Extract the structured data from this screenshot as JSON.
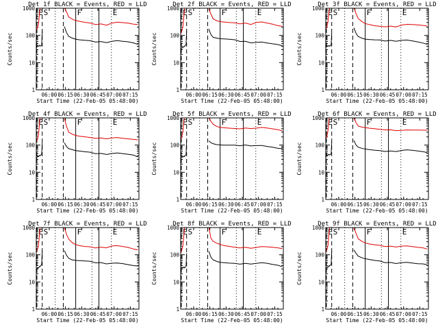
{
  "figure": {
    "title_template": "BLACK = Events, RED = LLD",
    "ylabel": "Counts/sec",
    "xlabel": "Start Time (22-Feb-05 05:48:00)"
  },
  "panels": [
    {
      "title": "Det 1f BLACK = Events, RED = LLD"
    },
    {
      "title": "Det 2f BLACK = Events, RED = LLD"
    },
    {
      "title": "Det 3f BLACK = Events, RED = LLD"
    },
    {
      "title": "Det 4f BLACK = Events, RED = LLD"
    },
    {
      "title": "Det 5f BLACK = Events, RED = LLD"
    },
    {
      "title": "Det 6f BLACK = Events, RED = LLD"
    },
    {
      "title": "Det 7f BLACK = Events, RED = LLD"
    },
    {
      "title": "Det 8f BLACK = Events, RED = LLD"
    },
    {
      "title": "Det 9f BLACK = Events, RED = LLD"
    }
  ],
  "chart_data": {
    "type": "line",
    "layout": "3x3 grid",
    "title": "BLACK = Events, RED = LLD",
    "xlabel": "Start Time (22-Feb-05 05:48:00)",
    "ylabel": "Counts/sec",
    "y_scale": "log",
    "ylim": [
      1,
      1000
    ],
    "y_ticks": [
      1,
      10,
      100,
      1000
    ],
    "y_tick_labels": [
      "1",
      "10",
      "100",
      "1000"
    ],
    "xlim_minutes_from_start": [
      0,
      95
    ],
    "x_ticks_minutes": [
      12,
      27,
      42,
      57,
      72,
      87
    ],
    "x_tick_labels": [
      "06:00",
      "06:15",
      "06:30",
      "06:45",
      "07:00",
      "07:15"
    ],
    "grid": false,
    "marker_lines": [
      {
        "label": "E",
        "minute": 0.6,
        "style": "dashed"
      },
      {
        "label": "S",
        "minute": 5.5,
        "style": "dashed"
      },
      {
        "label": "",
        "minute": 17.5,
        "style": "dotted"
      },
      {
        "label": "",
        "minute": 25.0,
        "style": "dashed"
      },
      {
        "label": "F",
        "minute": 36.5,
        "style": "solid"
      },
      {
        "label": "",
        "minute": 51.5,
        "style": "dotted"
      },
      {
        "label": "",
        "minute": 58.0,
        "style": "solid"
      },
      {
        "label": "E",
        "minute": 69.5,
        "style": "dotted"
      }
    ],
    "series_colors": {
      "LLD": "#e00000",
      "Events": "#000000"
    },
    "x_minutes": [
      0,
      1,
      2,
      3,
      3.5,
      4,
      5,
      5.5,
      6,
      8,
      12,
      16,
      20,
      24,
      25,
      25.5,
      26,
      28,
      30,
      33,
      36,
      40,
      45,
      50,
      55,
      60,
      65,
      70,
      75,
      80,
      85,
      90,
      94
    ],
    "panels": [
      {
        "name": "Det 1f",
        "series": [
          {
            "name": "LLD",
            "values": [
              150,
              180,
              250,
              600,
              1000,
              null,
              null,
              null,
              null,
              null,
              null,
              null,
              null,
              null,
              null,
              null,
              1000,
              700,
              450,
              380,
              340,
              320,
              300,
              290,
              260,
              280,
              250,
              300,
              320,
              300,
              280,
              250,
              240
            ]
          },
          {
            "name": "Events",
            "values": [
              30,
              40,
              38,
              42,
              40,
              42,
              45,
              150,
              null,
              null,
              null,
              null,
              null,
              null,
              null,
              null,
              200,
              120,
              90,
              80,
              75,
              72,
              70,
              68,
              60,
              62,
              55,
              60,
              62,
              58,
              55,
              50,
              45
            ]
          }
        ]
      },
      {
        "name": "Det 2f",
        "series": [
          {
            "name": "LLD",
            "values": [
              120,
              150,
              220,
              550,
              1000,
              null,
              null,
              null,
              null,
              null,
              null,
              null,
              null,
              null,
              null,
              null,
              1000,
              650,
              430,
              370,
              330,
              310,
              290,
              280,
              250,
              270,
              240,
              290,
              310,
              290,
              270,
              240,
              230
            ]
          },
          {
            "name": "Events",
            "values": [
              28,
              38,
              36,
              40,
              38,
              40,
              44,
              140,
              null,
              null,
              null,
              null,
              null,
              null,
              null,
              null,
              180,
              110,
              85,
              78,
              72,
              70,
              68,
              66,
              58,
              60,
              54,
              58,
              60,
              56,
              52,
              48,
              42
            ]
          }
        ]
      },
      {
        "name": "Det 3f",
        "series": [
          {
            "name": "LLD",
            "values": [
              160,
              200,
              300,
              700,
              1000,
              null,
              null,
              null,
              null,
              null,
              null,
              null,
              null,
              null,
              null,
              null,
              1000,
              600,
              400,
              330,
              280,
              260,
              240,
              230,
              220,
              230,
              210,
              240,
              250,
              240,
              230,
              220,
              210
            ]
          },
          {
            "name": "Events",
            "values": [
              32,
              42,
              40,
              44,
              42,
              44,
              48,
              130,
              null,
              null,
              null,
              null,
              null,
              null,
              null,
              null,
              190,
              120,
              95,
              85,
              78,
              75,
              72,
              70,
              62,
              64,
              58,
              62,
              64,
              60,
              56,
              52,
              48
            ]
          }
        ]
      },
      {
        "name": "Det 4f",
        "series": [
          {
            "name": "LLD",
            "values": [
              140,
              170,
              240,
              600,
              1000,
              null,
              null,
              null,
              null,
              null,
              null,
              null,
              null,
              null,
              null,
              null,
              1000,
              500,
              300,
              250,
              220,
              200,
              190,
              180,
              170,
              180,
              170,
              190,
              200,
              190,
              180,
              170,
              160
            ]
          },
          {
            "name": "Events",
            "values": [
              30,
              38,
              36,
              40,
              38,
              40,
              44,
              120,
              null,
              null,
              null,
              null,
              null,
              null,
              null,
              null,
              120,
              85,
              70,
              65,
              60,
              58,
              56,
              55,
              50,
              52,
              48,
              52,
              54,
              50,
              46,
              42,
              35
            ]
          }
        ]
      },
      {
        "name": "Det 5f",
        "series": [
          {
            "name": "LLD",
            "values": [
              150,
              200,
              300,
              800,
              1000,
              null,
              null,
              null,
              null,
              null,
              null,
              null,
              null,
              null,
              null,
              null,
              1000,
              750,
              600,
              520,
              480,
              460,
              440,
              420,
              400,
              420,
              390,
              400,
              420,
              400,
              380,
              360,
              340
            ]
          },
          {
            "name": "Events",
            "values": [
              30,
              40,
              38,
              42,
              40,
              42,
              45,
              150,
              null,
              null,
              null,
              null,
              null,
              null,
              null,
              null,
              150,
              130,
              120,
              110,
              105,
              100,
              98,
              96,
              90,
              95,
              88,
              92,
              95,
              90,
              86,
              80,
              78
            ]
          }
        ]
      },
      {
        "name": "Det 6f",
        "series": [
          {
            "name": "LLD",
            "values": [
              170,
              210,
              320,
              750,
              1000,
              null,
              null,
              null,
              null,
              null,
              null,
              null,
              null,
              null,
              null,
              null,
              1000,
              650,
              480,
              440,
              420,
              400,
              390,
              380,
              370,
              380,
              360,
              370,
              380,
              370,
              360,
              350,
              340
            ]
          },
          {
            "name": "Events",
            "values": [
              32,
              42,
              40,
              44,
              42,
              44,
              48,
              140,
              null,
              null,
              null,
              null,
              null,
              null,
              null,
              null,
              140,
              95,
              80,
              75,
              72,
              70,
              68,
              66,
              62,
              64,
              60,
              64,
              66,
              62,
              58,
              54,
              50
            ]
          }
        ]
      },
      {
        "name": "Det 7f",
        "series": [
          {
            "name": "LLD",
            "values": [
              130,
              160,
              230,
              580,
              1000,
              null,
              null,
              null,
              null,
              null,
              null,
              null,
              null,
              null,
              null,
              null,
              1000,
              600,
              400,
              300,
              250,
              220,
              200,
              190,
              170,
              180,
              170,
              200,
              210,
              200,
              190,
              170,
              160
            ]
          },
          {
            "name": "Events",
            "values": [
              28,
              36,
              34,
              38,
              36,
              38,
              42,
              130,
              null,
              null,
              null,
              null,
              null,
              null,
              null,
              null,
              150,
              100,
              75,
              65,
              60,
              58,
              56,
              54,
              48,
              50,
              46,
              50,
              52,
              50,
              46,
              42,
              40
            ]
          }
        ]
      },
      {
        "name": "Det 8f",
        "series": [
          {
            "name": "LLD",
            "values": [
              110,
              140,
              200,
              500,
              1000,
              null,
              null,
              null,
              null,
              null,
              null,
              null,
              null,
              null,
              null,
              null,
              1000,
              380,
              300,
              260,
              240,
              220,
              210,
              200,
              190,
              200,
              180,
              190,
              200,
              190,
              180,
              170,
              160
            ]
          },
          {
            "name": "Events",
            "values": [
              26,
              34,
              32,
              36,
              34,
              36,
              40,
              120,
              null,
              null,
              null,
              null,
              null,
              null,
              null,
              null,
              130,
              80,
              66,
              60,
              56,
              54,
              52,
              50,
              46,
              48,
              44,
              46,
              48,
              46,
              42,
              40,
              36
            ]
          }
        ]
      },
      {
        "name": "Det 9f",
        "series": [
          {
            "name": "LLD",
            "values": [
              130,
              160,
              230,
              580,
              1000,
              null,
              null,
              null,
              null,
              null,
              null,
              null,
              null,
              null,
              null,
              null,
              1000,
              650,
              400,
              320,
              270,
              240,
              220,
              210,
              190,
              200,
              190,
              210,
              220,
              210,
              200,
              190,
              170
            ]
          },
          {
            "name": "Events",
            "values": [
              28,
              36,
              34,
              38,
              36,
              38,
              42,
              130,
              null,
              null,
              null,
              null,
              null,
              null,
              null,
              null,
              150,
              110,
              85,
              75,
              68,
              64,
              60,
              58,
              52,
              54,
              50,
              54,
              56,
              52,
              48,
              46,
              42
            ]
          }
        ]
      }
    ]
  }
}
